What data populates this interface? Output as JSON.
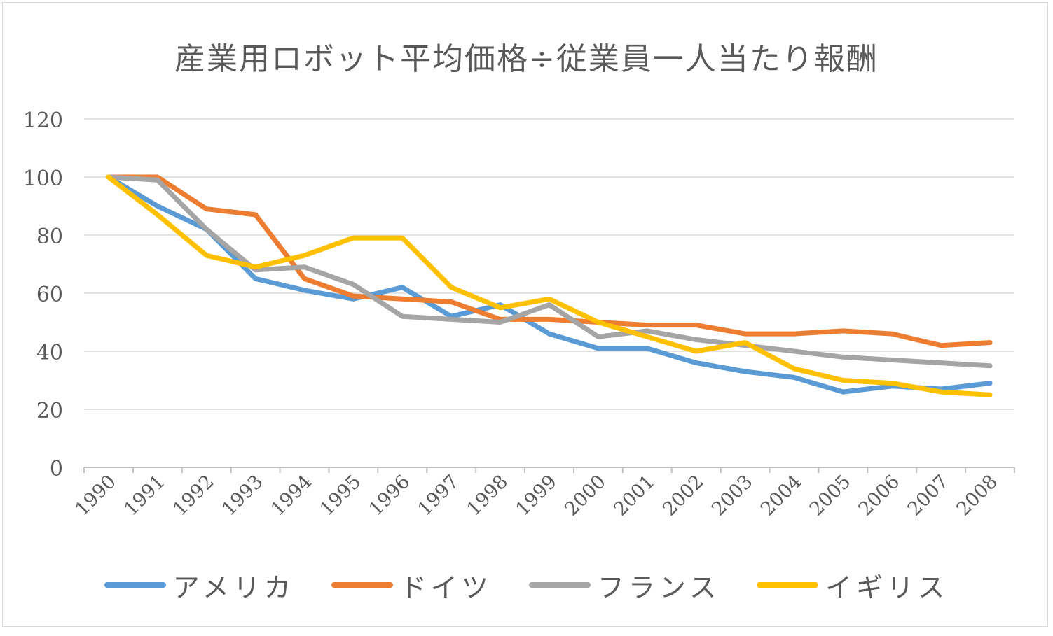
{
  "chart_data": {
    "type": "line",
    "title": "産業用ロボット平均価格÷従業員一人当たり報酬",
    "categories": [
      "1990",
      "1991",
      "1992",
      "1993",
      "1994",
      "1995",
      "1996",
      "1997",
      "1998",
      "1999",
      "2000",
      "2001",
      "2002",
      "2003",
      "2004",
      "2005",
      "2006",
      "2007",
      "2008"
    ],
    "ylim": [
      0,
      120
    ],
    "yticks": [
      0,
      20,
      40,
      60,
      80,
      100,
      120
    ],
    "grid": true,
    "legend_position": "bottom",
    "series": [
      {
        "name": "アメリカ",
        "color": "#5b9bd5",
        "values": [
          100,
          90,
          82,
          65,
          61,
          58,
          62,
          52,
          56,
          46,
          41,
          41,
          36,
          33,
          31,
          26,
          28,
          27,
          29
        ]
      },
      {
        "name": "ドイツ",
        "color": "#ed7d31",
        "values": [
          100,
          100,
          89,
          87,
          65,
          59,
          58,
          57,
          51,
          51,
          50,
          49,
          49,
          46,
          46,
          47,
          46,
          42,
          43
        ]
      },
      {
        "name": "フランス",
        "color": "#a5a5a5",
        "values": [
          100,
          99,
          82,
          68,
          69,
          63,
          52,
          51,
          50,
          56,
          45,
          47,
          44,
          42,
          40,
          38,
          37,
          36,
          35
        ]
      },
      {
        "name": "イギリス",
        "color": "#ffc000",
        "values": [
          100,
          87,
          73,
          69,
          73,
          79,
          79,
          62,
          55,
          58,
          50,
          45,
          40,
          43,
          34,
          30,
          29,
          26,
          25
        ]
      }
    ]
  }
}
